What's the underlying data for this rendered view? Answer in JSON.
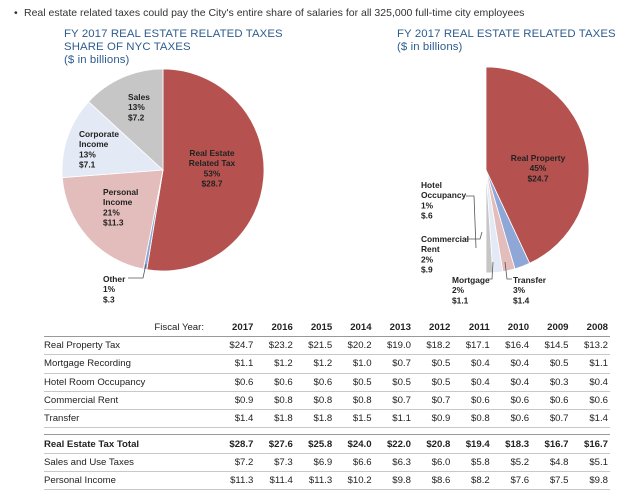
{
  "intro": {
    "bullet": "•",
    "text": "Real estate related taxes could pay the City's entire share of salaries for all 325,000 full-time city employees"
  },
  "left_chart": {
    "title_line1": "FY 2017 REAL ESTATE RELATED TAXES",
    "title_line2": "SHARE OF NYC TAXES",
    "subtitle": "($ in billions)"
  },
  "right_chart": {
    "title_line1": "FY 2017 REAL ESTATE RELATED TAXES",
    "subtitle": "($ in billions)"
  },
  "chart_data": [
    {
      "type": "pie",
      "title": "FY 2017 REAL ESTATE RELATED TAXES SHARE OF NYC TAXES ($ in billions)",
      "slices": [
        {
          "lines": [
            "Real Estate",
            "Related Tax",
            "53%",
            "$28.7"
          ],
          "value": 28.7,
          "percent": 53,
          "color": "#b5524f"
        },
        {
          "lines": [
            "Other",
            "1%",
            "$.3"
          ],
          "value": 0.3,
          "percent": 1,
          "color": "#8fa7d6"
        },
        {
          "lines": [
            "Personal",
            "Income",
            "21%",
            "$11.3"
          ],
          "value": 11.3,
          "percent": 21,
          "color": "#e3bdbc"
        },
        {
          "lines": [
            "Corporate",
            "Income",
            "13%",
            "$7.1"
          ],
          "value": 7.1,
          "percent": 13,
          "color": "#e3e9f5"
        },
        {
          "lines": [
            "Sales",
            "13%",
            "$7.2"
          ],
          "value": 7.2,
          "percent": 13,
          "color": "#c6c6c6"
        }
      ]
    },
    {
      "type": "pie",
      "title": "FY 2017 REAL ESTATE RELATED TAXES ($ in billions)",
      "slices": [
        {
          "lines": [
            "Real Property",
            "45%",
            "$24.7"
          ],
          "value": 24.7,
          "percent": 45,
          "color": "#b5524f"
        },
        {
          "lines": [
            "Transfer",
            "3%",
            "$1.4"
          ],
          "value": 1.4,
          "percent": 3,
          "color": "#8fa7d6"
        },
        {
          "lines": [
            "Mortgage",
            "2%",
            "$1.1"
          ],
          "value": 1.1,
          "percent": 2,
          "color": "#e3bdbc"
        },
        {
          "lines": [
            "Commercial",
            "Rent",
            "2%",
            "$.9"
          ],
          "value": 0.9,
          "percent": 2,
          "color": "#e3e9f5"
        },
        {
          "lines": [
            "Hotel",
            "Occupancy",
            "1%",
            "$.6"
          ],
          "value": 0.6,
          "percent": 1,
          "color": "#c6c6c6"
        }
      ]
    },
    {
      "type": "table",
      "header_label": "Fiscal Year:",
      "years": [
        "2017",
        "2016",
        "2015",
        "2014",
        "2013",
        "2012",
        "2011",
        "2010",
        "2009",
        "2008"
      ],
      "rows": [
        {
          "label": "Real Property Tax",
          "bold": false,
          "values": [
            "$24.7",
            "$23.2",
            "$21.5",
            "$20.2",
            "$19.0",
            "$18.2",
            "$17.1",
            "$16.4",
            "$14.5",
            "$13.2"
          ]
        },
        {
          "label": "Mortgage Recording",
          "bold": false,
          "values": [
            "$1.1",
            "$1.2",
            "$1.2",
            "$1.0",
            "$0.7",
            "$0.5",
            "$0.4",
            "$0.4",
            "$0.5",
            "$1.1"
          ]
        },
        {
          "label": "Hotel Room Occupancy",
          "bold": false,
          "values": [
            "$0.6",
            "$0.6",
            "$0.6",
            "$0.5",
            "$0.5",
            "$0.5",
            "$0.4",
            "$0.4",
            "$0.3",
            "$0.4"
          ]
        },
        {
          "label": "Commercial Rent",
          "bold": false,
          "values": [
            "$0.9",
            "$0.8",
            "$0.8",
            "$0.8",
            "$0.7",
            "$0.7",
            "$0.6",
            "$0.6",
            "$0.6",
            "$0.6"
          ]
        },
        {
          "label": "Transfer",
          "bold": false,
          "values": [
            "$1.4",
            "$1.8",
            "$1.8",
            "$1.5",
            "$1.1",
            "$0.9",
            "$0.8",
            "$0.6",
            "$0.7",
            "$1.4"
          ]
        },
        {
          "gap": true
        },
        {
          "label": "Real Estate Tax Total",
          "bold": true,
          "values": [
            "$28.7",
            "$27.6",
            "$25.8",
            "$24.0",
            "$22.0",
            "$20.8",
            "$19.4",
            "$18.3",
            "$16.7",
            "$16.7"
          ]
        },
        {
          "label": "Sales and Use Taxes",
          "bold": false,
          "values": [
            "$7.2",
            "$7.3",
            "$6.9",
            "$6.6",
            "$6.3",
            "$6.0",
            "$5.8",
            "$5.2",
            "$4.8",
            "$5.1"
          ]
        },
        {
          "label": "Personal Income",
          "bold": false,
          "values": [
            "$11.3",
            "$11.4",
            "$11.3",
            "$10.2",
            "$9.8",
            "$8.6",
            "$8.2",
            "$7.6",
            "$7.5",
            "$9.8"
          ]
        }
      ]
    }
  ]
}
